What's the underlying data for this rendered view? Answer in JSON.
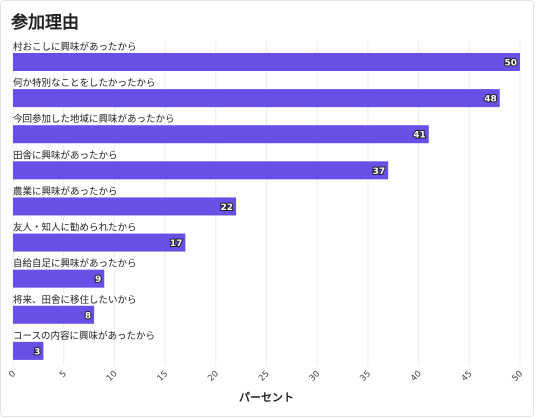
{
  "chart_data": {
    "type": "bar",
    "orientation": "horizontal",
    "title": "参加理由",
    "xlabel": "パーセント",
    "ylabel": "",
    "xlim": [
      0,
      50
    ],
    "xticks": [
      0,
      5,
      10,
      15,
      20,
      25,
      30,
      35,
      40,
      45,
      50
    ],
    "grid": true,
    "bar_color": "#6650e6",
    "categories": [
      "村おこしに興味があったから",
      "何か特別なことをしたかったから",
      "今回参加した地域に興味があったから",
      "田舎に興味があったから",
      "農業に興味があったから",
      "友人・知人に勧められたから",
      "自給自足に興味があったから",
      "将来、田舎に移住したいから",
      "コースの内容に興味があったから"
    ],
    "values": [
      50,
      48,
      41,
      37,
      22,
      17,
      9,
      8,
      3
    ]
  }
}
